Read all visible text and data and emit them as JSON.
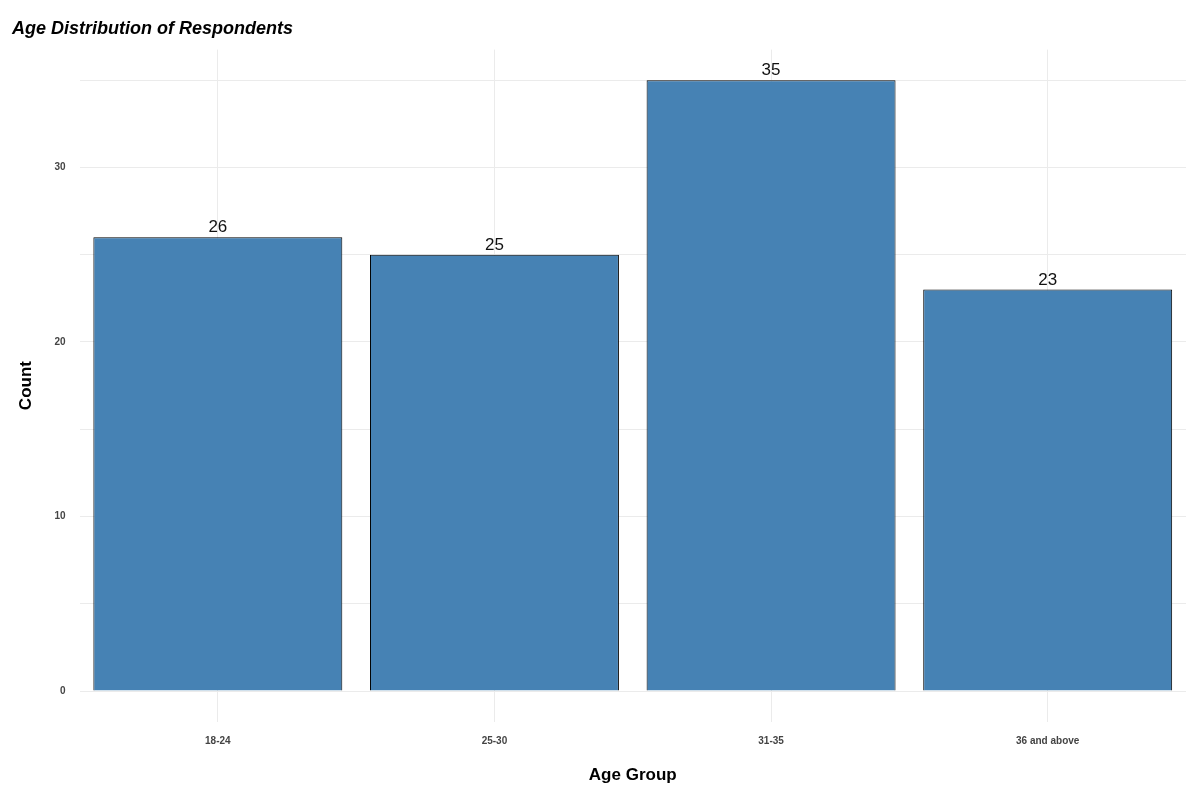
{
  "chart_data": {
    "type": "bar",
    "title": "Age Distribution of Respondents",
    "xlabel": "Age Group",
    "ylabel": "Count",
    "categories": [
      "18-24",
      "25-30",
      "31-35",
      "36 and above"
    ],
    "values": [
      26,
      25,
      35,
      23
    ],
    "color": "#4682b4",
    "ylim": [
      -1.75,
      36.75
    ],
    "yticks": [
      0,
      {
        "value": 5,
        "label": null
      },
      10,
      {
        "value": 15,
        "label": null
      },
      20,
      {
        "value": 25,
        "label": null
      },
      30,
      {
        "value": 35,
        "label": null
      }
    ],
    "grid": true,
    "data_labels": true
  }
}
